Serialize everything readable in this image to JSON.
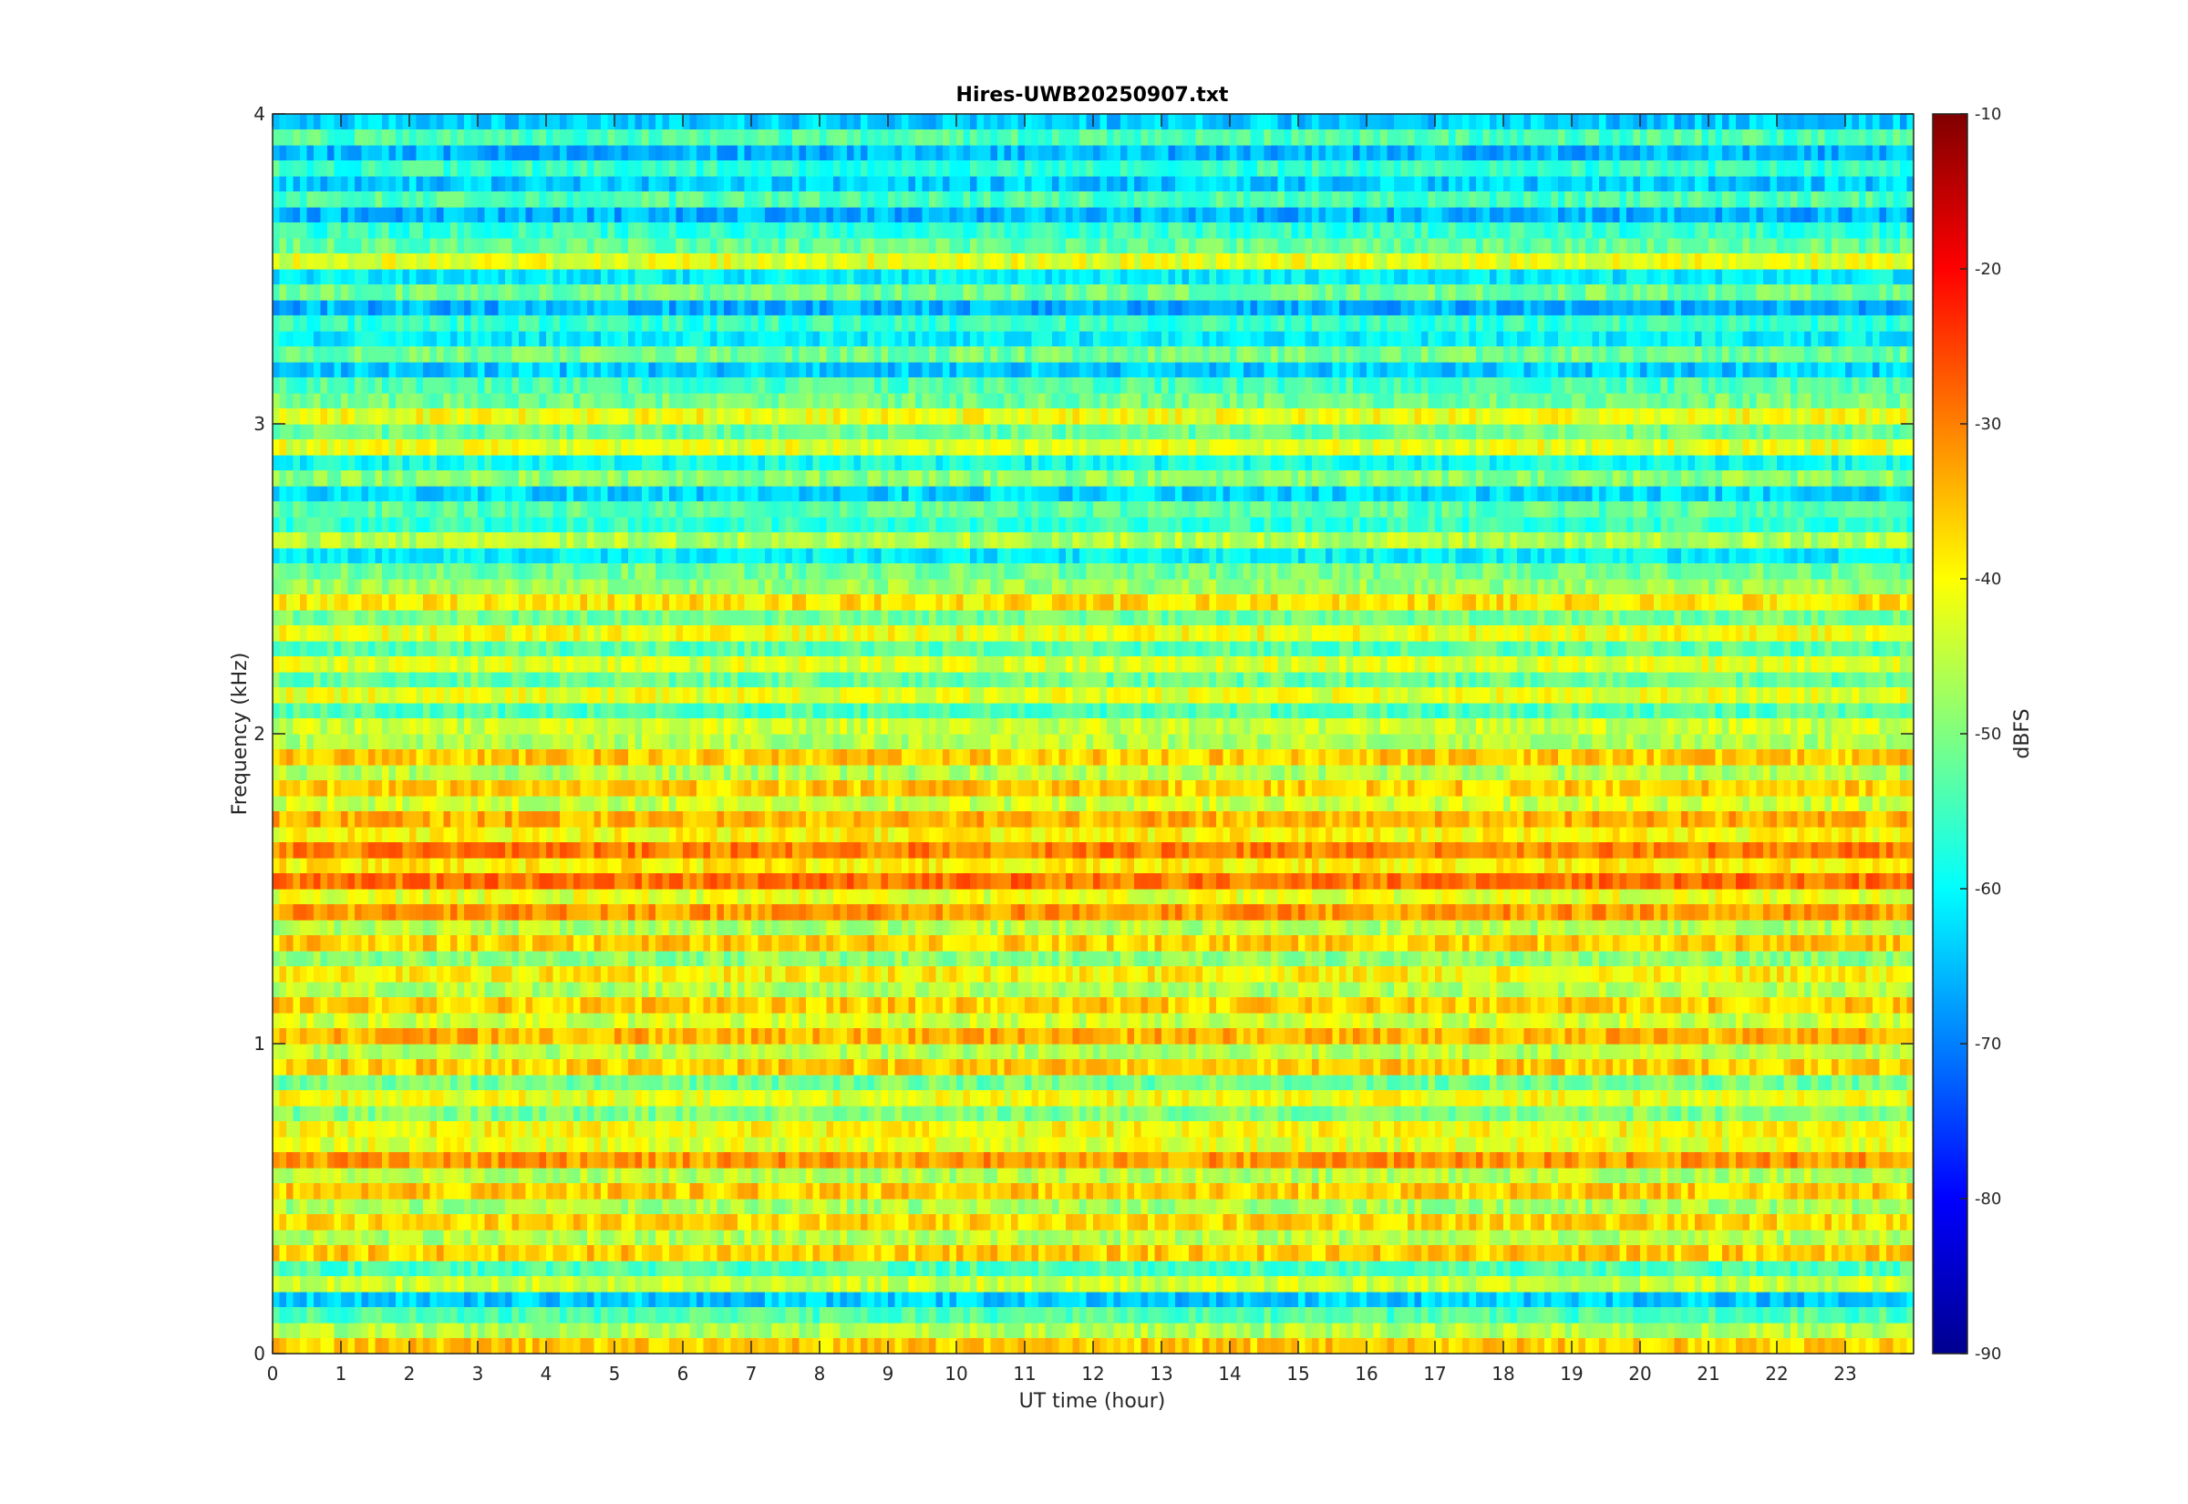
{
  "chart_data": {
    "type": "heatmap",
    "title": "Hires-UWB20250907.txt",
    "xlabel": "UT time (hour)",
    "ylabel": "Frequency (kHz)",
    "xlim": [
      0,
      24
    ],
    "ylim": [
      0,
      4
    ],
    "x_ticks": [
      "0",
      "1",
      "2",
      "3",
      "4",
      "5",
      "6",
      "7",
      "8",
      "9",
      "10",
      "11",
      "12",
      "13",
      "14",
      "15",
      "16",
      "17",
      "18",
      "19",
      "20",
      "21",
      "22",
      "23"
    ],
    "y_ticks": [
      "0",
      "1",
      "2",
      "3",
      "4"
    ],
    "colorbar": {
      "label": "dBFS",
      "range": [
        -90,
        -10
      ],
      "ticks": [
        "-10",
        "-20",
        "-30",
        "-40",
        "-50",
        "-60",
        "-70",
        "-80",
        "-90"
      ],
      "colormap": "jet"
    },
    "bands": [
      {
        "f": 0.05,
        "level": -40
      },
      {
        "f": 0.15,
        "level": -58
      },
      {
        "f": 0.25,
        "level": -48
      },
      {
        "f": 0.35,
        "level": -40
      },
      {
        "f": 0.45,
        "level": -41
      },
      {
        "f": 0.55,
        "level": -40
      },
      {
        "f": 0.65,
        "level": -36
      },
      {
        "f": 0.75,
        "level": -44
      },
      {
        "f": 0.85,
        "level": -45
      },
      {
        "f": 0.95,
        "level": -40
      },
      {
        "f": 1.05,
        "level": -38
      },
      {
        "f": 1.15,
        "level": -40
      },
      {
        "f": 1.25,
        "level": -43
      },
      {
        "f": 1.35,
        "level": -40
      },
      {
        "f": 1.45,
        "level": -36
      },
      {
        "f": 1.55,
        "level": -33
      },
      {
        "f": 1.65,
        "level": -34
      },
      {
        "f": 1.75,
        "level": -38
      },
      {
        "f": 1.85,
        "level": -40
      },
      {
        "f": 1.95,
        "level": -40
      },
      {
        "f": 2.05,
        "level": -48
      },
      {
        "f": 2.15,
        "level": -46
      },
      {
        "f": 2.25,
        "level": -47
      },
      {
        "f": 2.35,
        "level": -45
      },
      {
        "f": 2.45,
        "level": -42
      },
      {
        "f": 2.55,
        "level": -55
      },
      {
        "f": 2.65,
        "level": -50
      },
      {
        "f": 2.75,
        "level": -57
      },
      {
        "f": 2.85,
        "level": -53
      },
      {
        "f": 2.95,
        "level": -46
      },
      {
        "f": 3.05,
        "level": -45
      },
      {
        "f": 3.15,
        "level": -58
      },
      {
        "f": 3.25,
        "level": -55
      },
      {
        "f": 3.35,
        "level": -60
      },
      {
        "f": 3.45,
        "level": -55
      },
      {
        "f": 3.55,
        "level": -46
      },
      {
        "f": 3.65,
        "level": -60
      },
      {
        "f": 3.75,
        "level": -58
      },
      {
        "f": 3.85,
        "level": -60
      },
      {
        "f": 3.95,
        "level": -58
      }
    ]
  }
}
